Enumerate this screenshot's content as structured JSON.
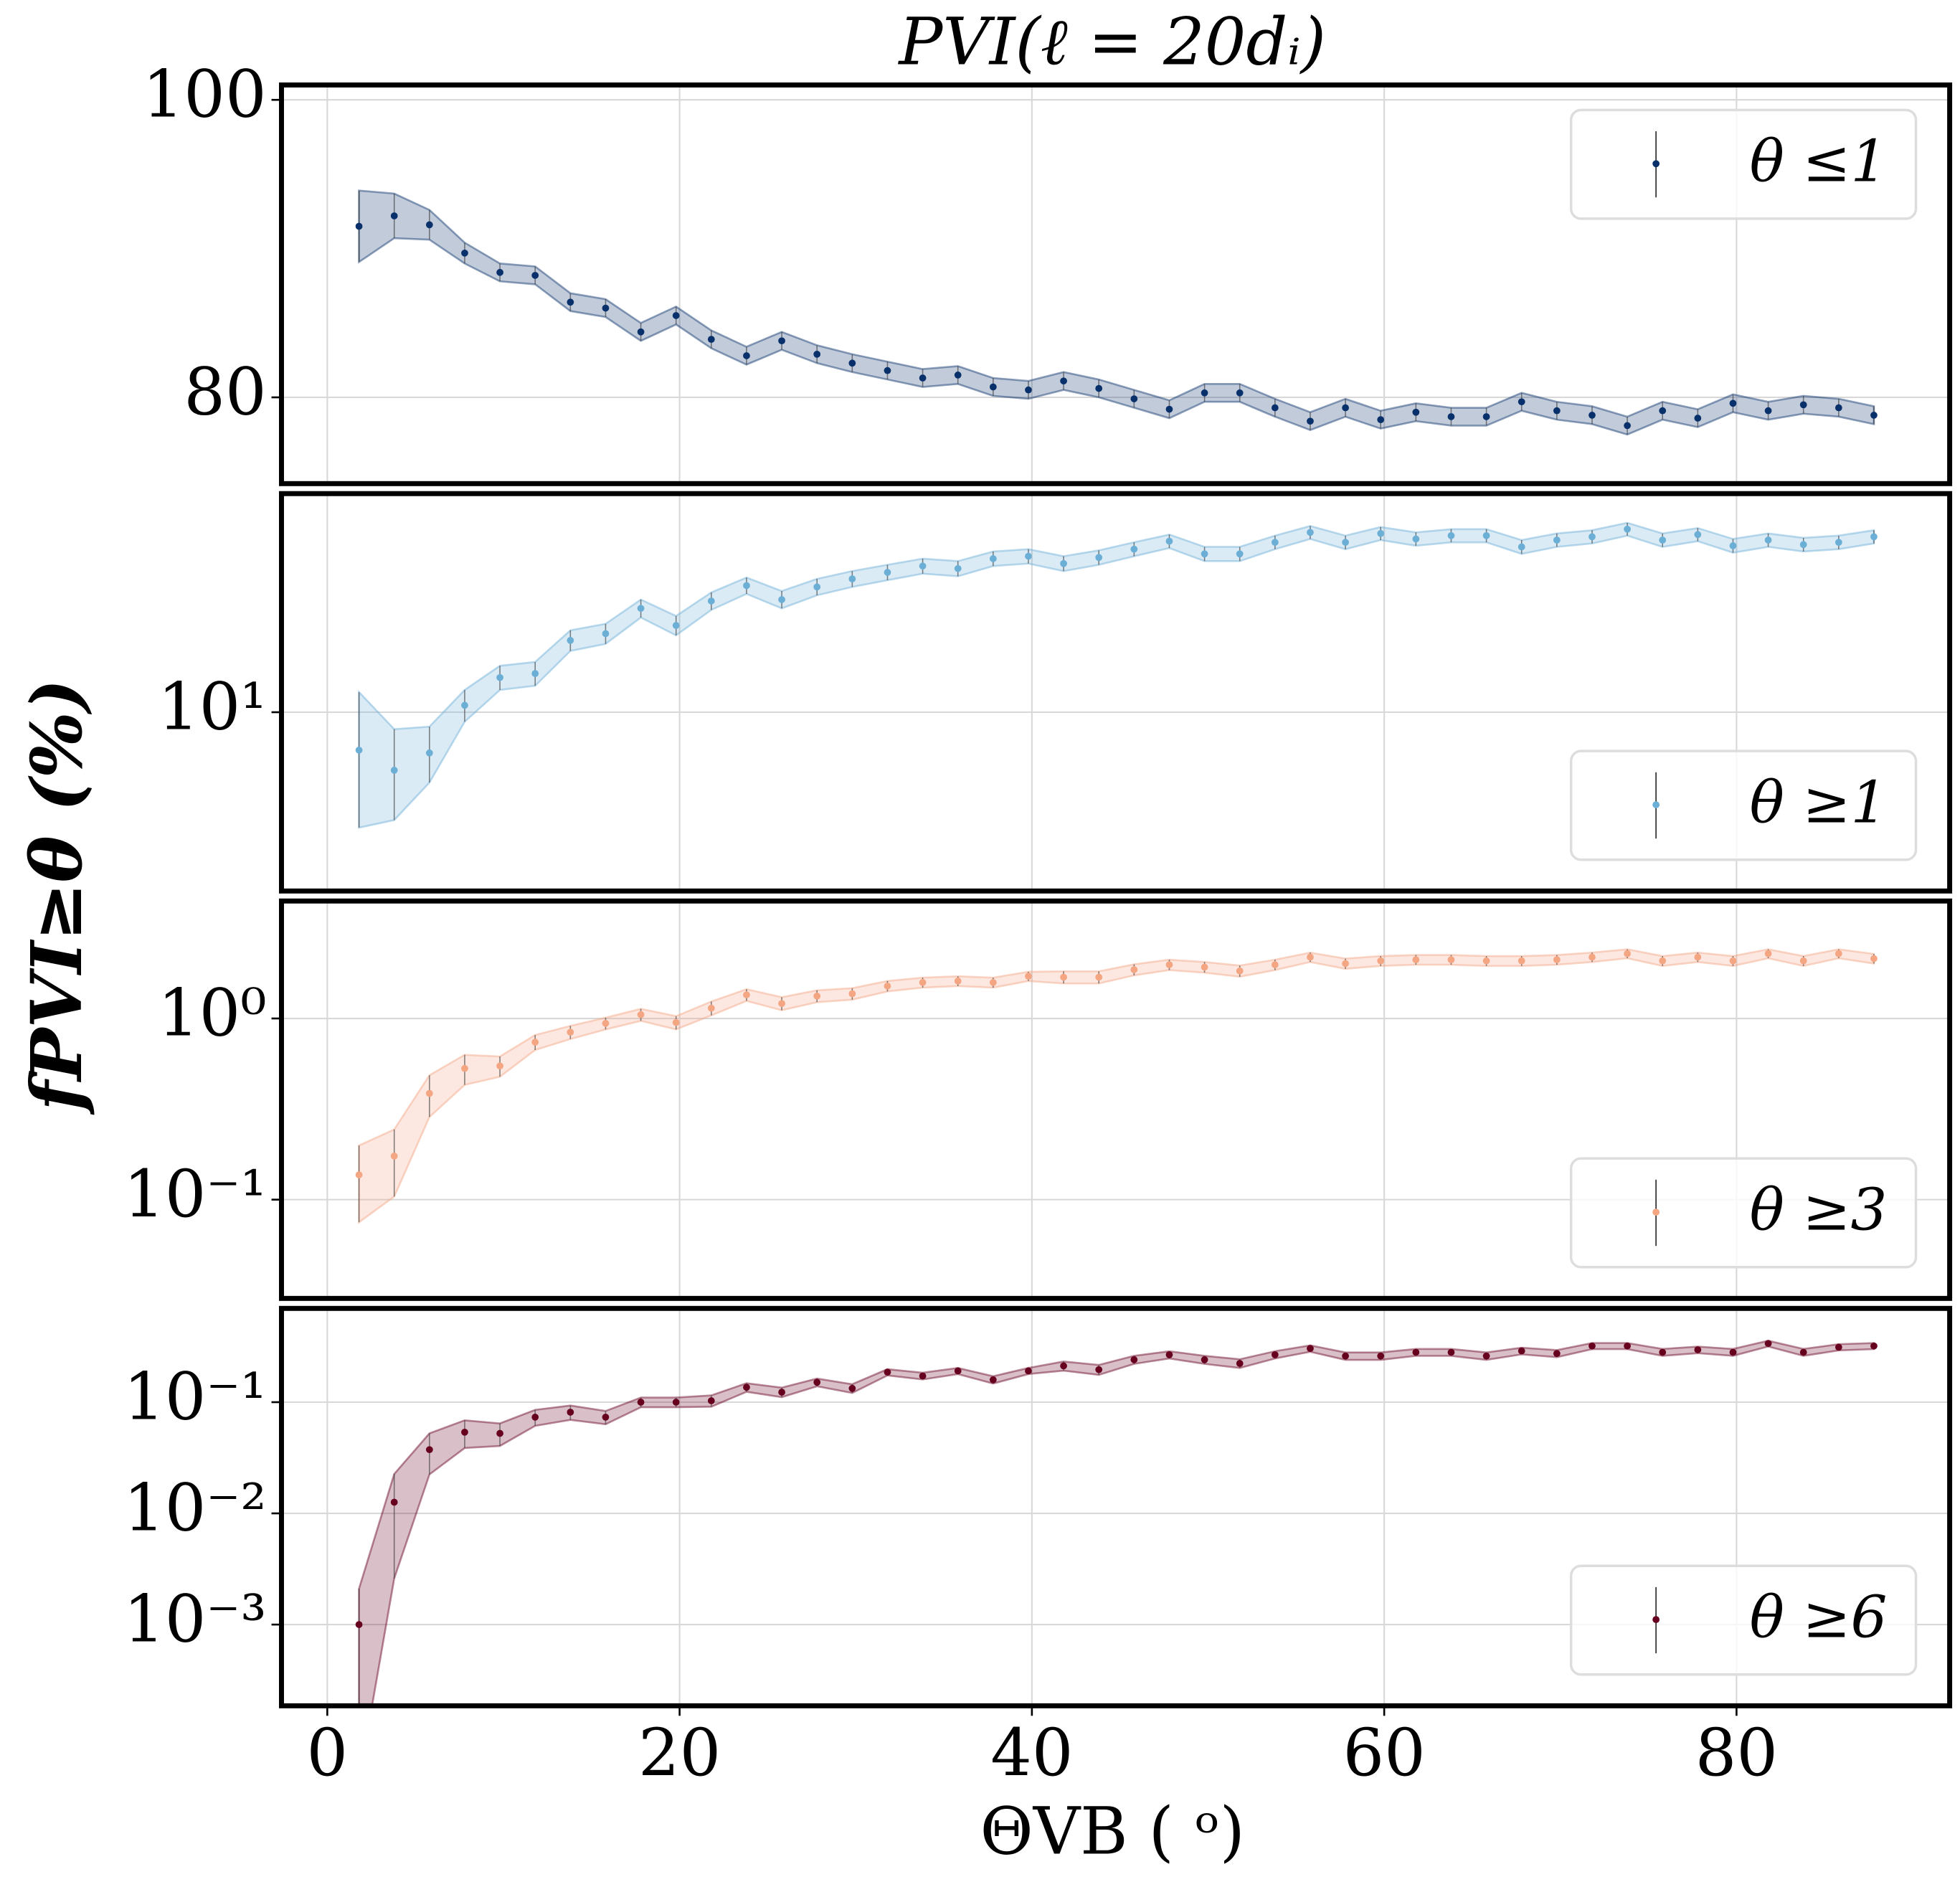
{
  "title": "PVI(ℓ = 20dᵢ)",
  "xlabel": "ΘVB ( ᵒ)",
  "ylabel": "fPVI≥θ (%)",
  "chart_data": [
    {
      "type": "errorbar",
      "log": false,
      "legend": "upper right",
      "grid": true,
      "x": [
        1.8,
        3.8,
        5.8,
        7.8,
        9.8,
        11.8,
        13.8,
        15.8,
        17.8,
        19.8,
        21.8,
        23.8,
        25.8,
        27.8,
        29.8,
        31.8,
        33.8,
        35.8,
        37.8,
        39.8,
        41.8,
        43.8,
        45.8,
        47.8,
        49.8,
        51.8,
        53.8,
        55.8,
        57.8,
        59.8,
        61.8,
        63.8,
        65.8,
        67.8,
        69.8,
        71.8,
        73.8,
        75.8,
        77.8,
        79.8,
        81.8,
        83.8,
        85.8,
        87.8
      ],
      "xlim": [
        -2.6,
        92.1
      ],
      "xticks": [
        0,
        20,
        40,
        60,
        80
      ],
      "ylim": [
        74.2,
        101
      ],
      "yticks": [
        80,
        100
      ],
      "series": [
        {
          "name": "θ ≤1",
          "color": "#08306b",
          "values": [
            91.5,
            92.2,
            91.6,
            89.7,
            88.4,
            88.2,
            86.4,
            86.0,
            84.4,
            85.5,
            83.9,
            82.8,
            83.8,
            82.9,
            82.3,
            81.8,
            81.3,
            81.5,
            80.7,
            80.5,
            81.1,
            80.6,
            79.9,
            79.2,
            80.3,
            80.3,
            79.3,
            78.4,
            79.3,
            78.5,
            79.0,
            78.7,
            78.7,
            79.7,
            79.1,
            78.8,
            78.1,
            79.1,
            78.6,
            79.6,
            79.1,
            79.5,
            79.3,
            78.8
          ],
          "errors": [
            2.4,
            1.5,
            1.0,
            0.7,
            0.6,
            0.6,
            0.6,
            0.6,
            0.6,
            0.6,
            0.6,
            0.6,
            0.6,
            0.6,
            0.6,
            0.6,
            0.6,
            0.6,
            0.6,
            0.6,
            0.6,
            0.6,
            0.6,
            0.6,
            0.6,
            0.6,
            0.6,
            0.6,
            0.6,
            0.6,
            0.6,
            0.6,
            0.6,
            0.6,
            0.6,
            0.6,
            0.6,
            0.6,
            0.6,
            0.6,
            0.6,
            0.6,
            0.6,
            0.6
          ]
        }
      ]
    },
    {
      "type": "errorbar",
      "log": true,
      "legend": "lower right",
      "grid": true,
      "x": [
        1.8,
        3.8,
        5.8,
        7.8,
        9.8,
        11.8,
        13.8,
        15.8,
        17.8,
        19.8,
        21.8,
        23.8,
        25.8,
        27.8,
        29.8,
        31.8,
        33.8,
        35.8,
        37.8,
        39.8,
        41.8,
        43.8,
        45.8,
        47.8,
        49.8,
        51.8,
        53.8,
        55.8,
        57.8,
        59.8,
        61.8,
        63.8,
        65.8,
        67.8,
        69.8,
        71.8,
        73.8,
        75.8,
        77.8,
        79.8,
        81.8,
        83.8,
        85.8,
        87.8
      ],
      "xlim": [
        -2.6,
        92.1
      ],
      "xticks": [
        0,
        20,
        40,
        60,
        80
      ],
      "ylim": [
        4.65,
        25.5
      ],
      "yticks": [
        {
          "value": 10,
          "label": "10¹"
        }
      ],
      "series": [
        {
          "name": "θ ≥1",
          "color": "#6baed6",
          "values": [
            8.5,
            7.8,
            8.4,
            10.3,
            11.6,
            11.8,
            13.6,
            14.0,
            15.6,
            14.5,
            16.1,
            17.2,
            16.2,
            17.1,
            17.7,
            18.2,
            18.7,
            18.5,
            19.3,
            19.5,
            18.9,
            19.4,
            20.1,
            20.8,
            19.7,
            19.7,
            20.7,
            21.6,
            20.7,
            21.5,
            21.0,
            21.3,
            21.3,
            20.3,
            20.9,
            21.2,
            21.9,
            20.9,
            21.4,
            20.4,
            20.9,
            20.5,
            20.7,
            21.2
          ],
          "errors": [
            2.4,
            1.5,
            1.0,
            0.7,
            0.6,
            0.6,
            0.6,
            0.6,
            0.6,
            0.6,
            0.6,
            0.6,
            0.6,
            0.6,
            0.6,
            0.6,
            0.6,
            0.6,
            0.6,
            0.6,
            0.6,
            0.6,
            0.6,
            0.6,
            0.6,
            0.6,
            0.6,
            0.6,
            0.6,
            0.6,
            0.6,
            0.6,
            0.6,
            0.6,
            0.6,
            0.6,
            0.6,
            0.6,
            0.6,
            0.6,
            0.6,
            0.6,
            0.6,
            0.6
          ]
        }
      ]
    },
    {
      "type": "errorbar",
      "log": true,
      "legend": "lower right",
      "grid": true,
      "x": [
        1.8,
        3.8,
        5.8,
        7.8,
        9.8,
        11.8,
        13.8,
        15.8,
        17.8,
        19.8,
        21.8,
        23.8,
        25.8,
        27.8,
        29.8,
        31.8,
        33.8,
        35.8,
        37.8,
        39.8,
        41.8,
        43.8,
        45.8,
        47.8,
        49.8,
        51.8,
        53.8,
        55.8,
        57.8,
        59.8,
        61.8,
        63.8,
        65.8,
        67.8,
        69.8,
        71.8,
        73.8,
        75.8,
        77.8,
        79.8,
        81.8,
        83.8,
        85.8,
        87.8
      ],
      "xlim": [
        -2.6,
        92.1
      ],
      "xticks": [
        0,
        20,
        40,
        60,
        80
      ],
      "ylim": [
        0.0285,
        4.45
      ],
      "yticks": [
        {
          "value": 0.1,
          "label": "10⁻¹"
        },
        {
          "value": 1,
          "label": "10⁰"
        }
      ],
      "series": [
        {
          "name": "θ ≥3",
          "color": "#f4a582",
          "values": [
            0.137,
            0.174,
            0.386,
            0.53,
            0.547,
            0.74,
            0.84,
            0.94,
            1.05,
            0.95,
            1.14,
            1.35,
            1.21,
            1.33,
            1.37,
            1.51,
            1.58,
            1.61,
            1.58,
            1.71,
            1.69,
            1.69,
            1.86,
            1.98,
            1.92,
            1.83,
            1.98,
            2.18,
            2.01,
            2.08,
            2.11,
            2.11,
            2.08,
            2.08,
            2.11,
            2.18,
            2.28,
            2.08,
            2.18,
            2.08,
            2.28,
            2.08,
            2.28,
            2.14
          ],
          "errors": [
            0.062,
            0.07,
            0.1,
            0.1,
            0.07,
            0.07,
            0.07,
            0.07,
            0.08,
            0.08,
            0.1,
            0.1,
            0.1,
            0.1,
            0.1,
            0.1,
            0.1,
            0.1,
            0.1,
            0.1,
            0.13,
            0.13,
            0.13,
            0.13,
            0.13,
            0.13,
            0.13,
            0.13,
            0.13,
            0.13,
            0.13,
            0.13,
            0.13,
            0.13,
            0.13,
            0.13,
            0.13,
            0.13,
            0.13,
            0.13,
            0.13,
            0.13,
            0.13,
            0.13
          ]
        }
      ]
    },
    {
      "type": "errorbar",
      "log": true,
      "legend": "lower right",
      "grid": true,
      "x": [
        1.8,
        3.8,
        5.8,
        7.8,
        9.8,
        11.8,
        13.8,
        15.8,
        17.8,
        19.8,
        21.8,
        23.8,
        25.8,
        27.8,
        29.8,
        31.8,
        33.8,
        35.8,
        37.8,
        39.8,
        41.8,
        43.8,
        45.8,
        47.8,
        49.8,
        51.8,
        53.8,
        55.8,
        57.8,
        59.8,
        61.8,
        63.8,
        65.8,
        67.8,
        69.8,
        71.8,
        73.8,
        75.8,
        77.8,
        79.8,
        81.8,
        83.8,
        85.8,
        87.8
      ],
      "xlim": [
        -2.6,
        92.1
      ],
      "xticks": [
        0,
        20,
        40,
        60,
        80
      ],
      "ylim": [
        0.000186,
        0.697
      ],
      "yticks": [
        {
          "value": 0.001,
          "label": "10⁻³"
        },
        {
          "value": 0.01,
          "label": "10⁻²"
        },
        {
          "value": 0.1,
          "label": "10⁻¹"
        }
      ],
      "series": [
        {
          "name": "θ ≥6",
          "color": "#67001f",
          "values": [
            0.001,
            0.0126,
            0.0374,
            0.0537,
            0.0524,
            0.0733,
            0.0813,
            0.0733,
            0.1,
            0.1,
            0.103,
            0.136,
            0.123,
            0.151,
            0.133,
            0.186,
            0.172,
            0.191,
            0.159,
            0.191,
            0.212,
            0.196,
            0.241,
            0.267,
            0.241,
            0.223,
            0.267,
            0.304,
            0.26,
            0.26,
            0.281,
            0.281,
            0.26,
            0.289,
            0.274,
            0.32,
            0.32,
            0.281,
            0.296,
            0.281,
            0.337,
            0.281,
            0.312,
            0.32
          ],
          "errors": [
            0.0011,
            0.01,
            0.015,
            0.015,
            0.012,
            0.012,
            0.012,
            0.01,
            0.01,
            0.01,
            0.012,
            0.012,
            0.012,
            0.012,
            0.012,
            0.012,
            0.012,
            0.012,
            0.012,
            0.012,
            0.02,
            0.02,
            0.02,
            0.02,
            0.02,
            0.02,
            0.02,
            0.02,
            0.02,
            0.02,
            0.02,
            0.02,
            0.02,
            0.02,
            0.02,
            0.02,
            0.02,
            0.02,
            0.02,
            0.02,
            0.02,
            0.02,
            0.02,
            0.02
          ]
        }
      ]
    }
  ]
}
